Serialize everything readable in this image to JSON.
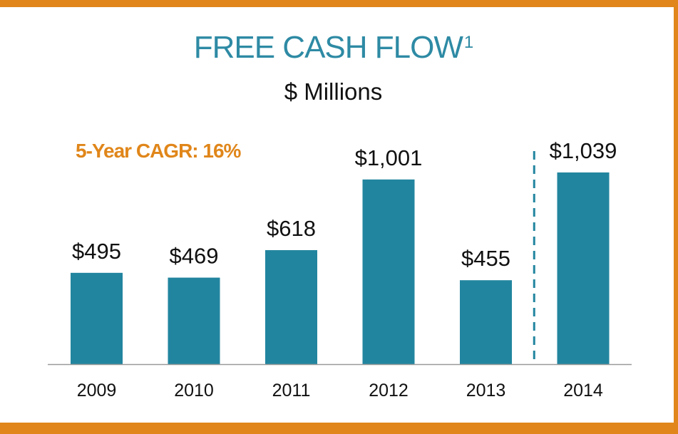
{
  "colors": {
    "border": "#E0861A",
    "title": "#2E8AA4",
    "bar": "#22859F",
    "cagr": "#E0861A",
    "axis": "#999999",
    "divider": "#22859F"
  },
  "title": "FREE CASH FLOW",
  "title_superscript": "1",
  "subtitle": "$ Millions",
  "annotation": "5-Year CAGR: 16%",
  "chart_data": {
    "type": "bar",
    "categories": [
      "2009",
      "2010",
      "2011",
      "2012",
      "2013",
      "2014"
    ],
    "values": [
      495,
      469,
      618,
      1001,
      455,
      1039
    ],
    "data_labels": [
      "$495",
      "$469",
      "$618",
      "$1,001",
      "$455",
      "$1,039"
    ],
    "title": "FREE CASH FLOW",
    "subtitle": "$ Millions",
    "xlabel": "",
    "ylabel": "",
    "ylim": [
      0,
      1039
    ],
    "grid": false,
    "legend": "none",
    "divider_between": [
      "2013",
      "2014"
    ],
    "annotations": [
      "5-Year CAGR: 16%"
    ]
  }
}
